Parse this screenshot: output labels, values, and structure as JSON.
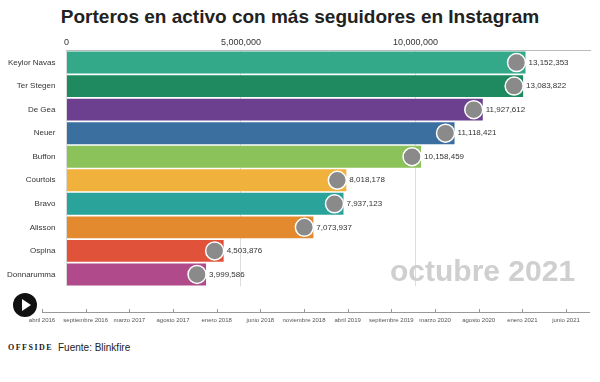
{
  "chart_data": {
    "type": "bar",
    "orientation": "horizontal",
    "title": "Porteros en activo con más seguidores en Instagram",
    "categories": [
      "Keylor Navas",
      "Ter Stegen",
      "De Gea",
      "Neuer",
      "Buffon",
      "Courtois",
      "Bravo",
      "Alisson",
      "Ospina",
      "Donnarumma"
    ],
    "values": [
      13152353,
      13083822,
      11927612,
      11118421,
      10158459,
      8018178,
      7937123,
      7073937,
      4503876,
      3999586
    ],
    "value_labels": [
      "13,152,353",
      "13,083,822",
      "11,927,612",
      "11,118,421",
      "10,158,459",
      "8,018,178",
      "7,937,123",
      "7,073,937",
      "4,503,876",
      "3,999,586"
    ],
    "colors": [
      "#33a98a",
      "#1f8a60",
      "#6d3f8f",
      "#3b6fa0",
      "#8cc25a",
      "#f0b23c",
      "#2aa39b",
      "#e3892e",
      "#e0533a",
      "#b04a8a"
    ],
    "xlim": [
      0,
      15000000
    ],
    "xticks": [
      0,
      {
        "value": 5000000,
        "label": "5,000,000"
      },
      {
        "value": 10000000,
        "label": "10,000,000"
      }
    ],
    "grid": true,
    "data_labels": true,
    "date_label": "octubre 2021",
    "timeline": [
      "abril 2016",
      "septiembre 2016",
      "marzo 2017",
      "agosto 2017",
      "enero 2018",
      "junio 2018",
      "noviembre 2018",
      "abril 2019",
      "septiembre 2019",
      "marzo 2020",
      "agosto 2020",
      "enero 2021",
      "junio 2021"
    ],
    "source": "Fuente: Blinkfire",
    "logo": "OFFSIDE"
  }
}
